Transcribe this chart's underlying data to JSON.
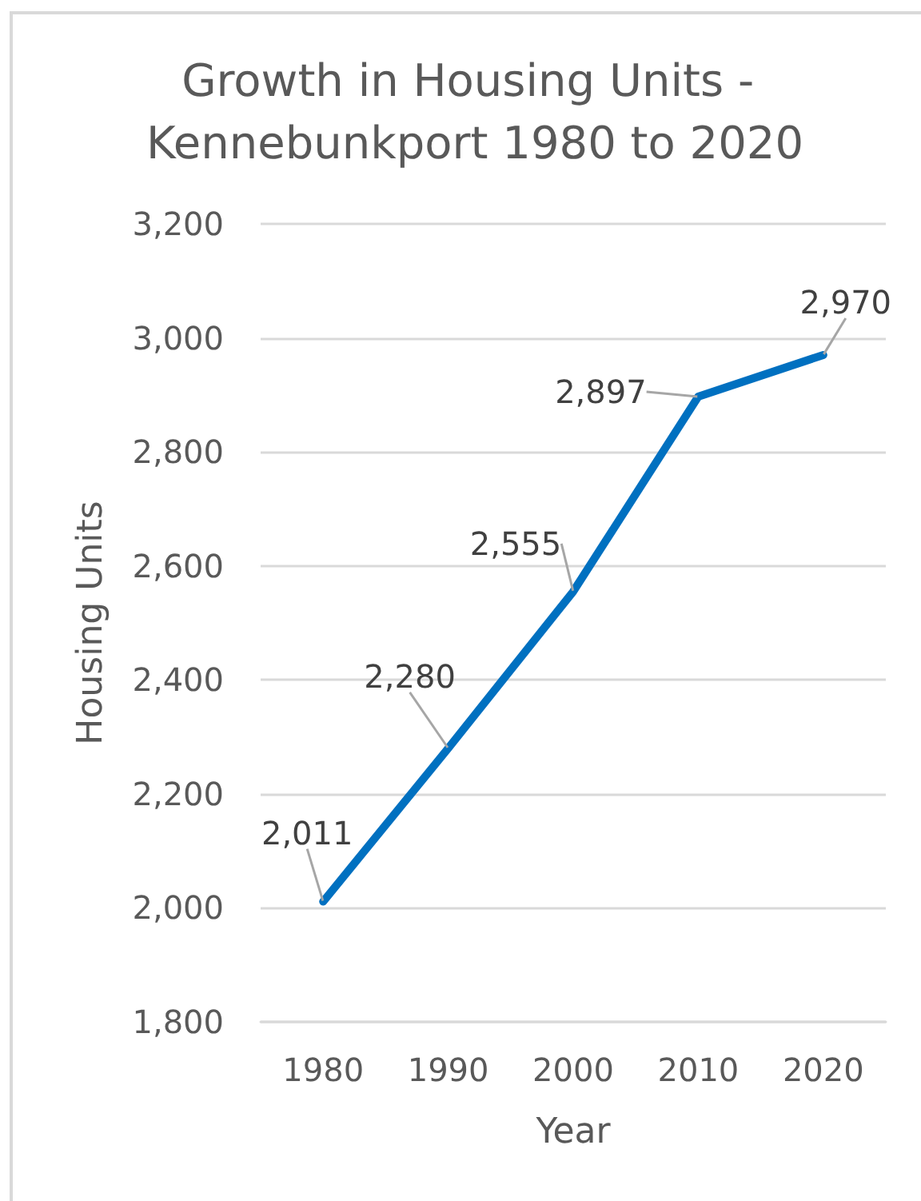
{
  "chart_data": {
    "type": "line",
    "title": "Growth in Housing Units - Kennebunkport 1980 to 2020",
    "xlabel": "Year",
    "ylabel": "Housing Units",
    "categories": [
      "1980",
      "1990",
      "2000",
      "2010",
      "2020"
    ],
    "values": [
      2011,
      2280,
      2555,
      2897,
      2970
    ],
    "color": "#0070c0",
    "value_labels": [
      "2,011",
      "2,280",
      "2,555",
      "2,897",
      "2,970"
    ],
    "ylim": [
      1800,
      3200
    ],
    "yticks": [
      {
        "value": 1800,
        "label": "1,800"
      },
      {
        "value": 2000,
        "label": "2,000"
      },
      {
        "value": 2200,
        "label": "2,200"
      },
      {
        "value": 2400,
        "label": "2,400"
      },
      {
        "value": 2600,
        "label": "2,600"
      },
      {
        "value": 2800,
        "label": "2,800"
      },
      {
        "value": 3000,
        "label": "3,000"
      },
      {
        "value": 3200,
        "label": "3,200"
      }
    ],
    "grid": "y"
  }
}
